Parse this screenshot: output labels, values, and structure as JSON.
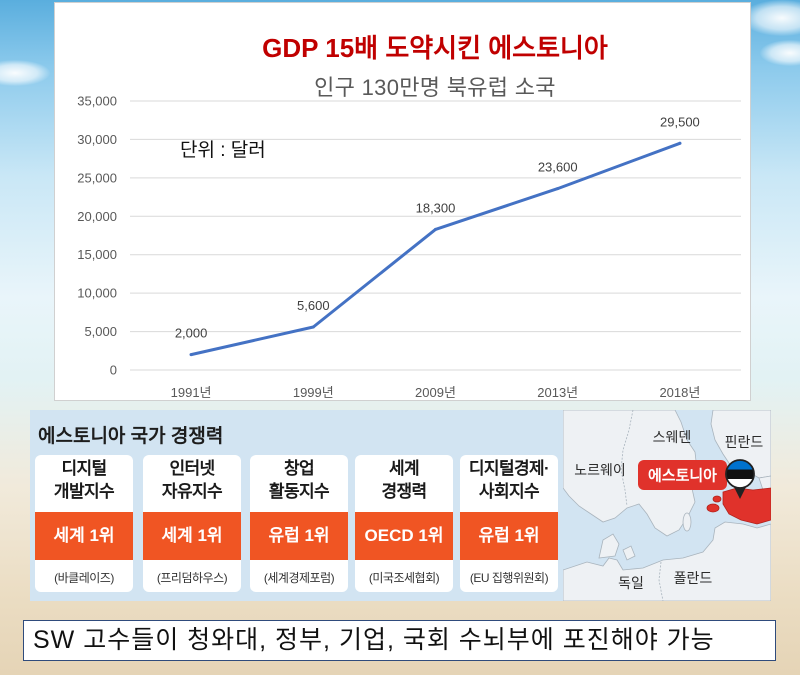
{
  "chart_data": {
    "type": "line",
    "title": "GDP 15배 도약시킨 에스토니아",
    "subtitle": "인구 130만명 북유럽 소국",
    "annotation": "단위 : 달러",
    "categories": [
      "1991년",
      "1999년",
      "2009년",
      "2013년",
      "2018년"
    ],
    "values": [
      2000,
      5600,
      18300,
      23600,
      29500
    ],
    "ylim": [
      0,
      35000
    ],
    "yticks": [
      0,
      5000,
      10000,
      15000,
      20000,
      25000,
      30000,
      35000
    ],
    "grid": true,
    "data_labels": true,
    "line_color": "#4472C4"
  },
  "competitiveness": {
    "title": "에스토니아 국가 경쟁력",
    "cards": [
      {
        "line1": "디지털",
        "line2": "개발지수",
        "rank": "세계 1위",
        "source": "(바클레이즈)"
      },
      {
        "line1": "인터넷",
        "line2": "자유지수",
        "rank": "세계 1위",
        "source": "(프리덤하우스)"
      },
      {
        "line1": "창업",
        "line2": "활동지수",
        "rank": "유럽 1위",
        "source": "(세계경제포럼)"
      },
      {
        "line1": "세계",
        "line2": "경쟁력",
        "rank": "OECD 1위",
        "source": "(미국조세협회)"
      },
      {
        "line1": "디지털경제·",
        "line2": "사회지수",
        "rank": "유럽 1위",
        "source": "(EU 집행위원회)"
      }
    ]
  },
  "map": {
    "sweden": "스웨덴",
    "finland": "핀란드",
    "norway": "노르웨이",
    "germany": "독일",
    "poland": "폴란드",
    "highlight": "에스토니아",
    "flag_icon": "estonia-flag-pin-icon"
  },
  "caption": "SW 고수들이 청와대, 정부, 기업, 국회 수뇌부에 포진해야 가능",
  "colors": {
    "title_red": "#c00000",
    "rank_band": "#f05523",
    "highlight_red": "#e0322b",
    "caption_border": "#2f4b7c"
  }
}
